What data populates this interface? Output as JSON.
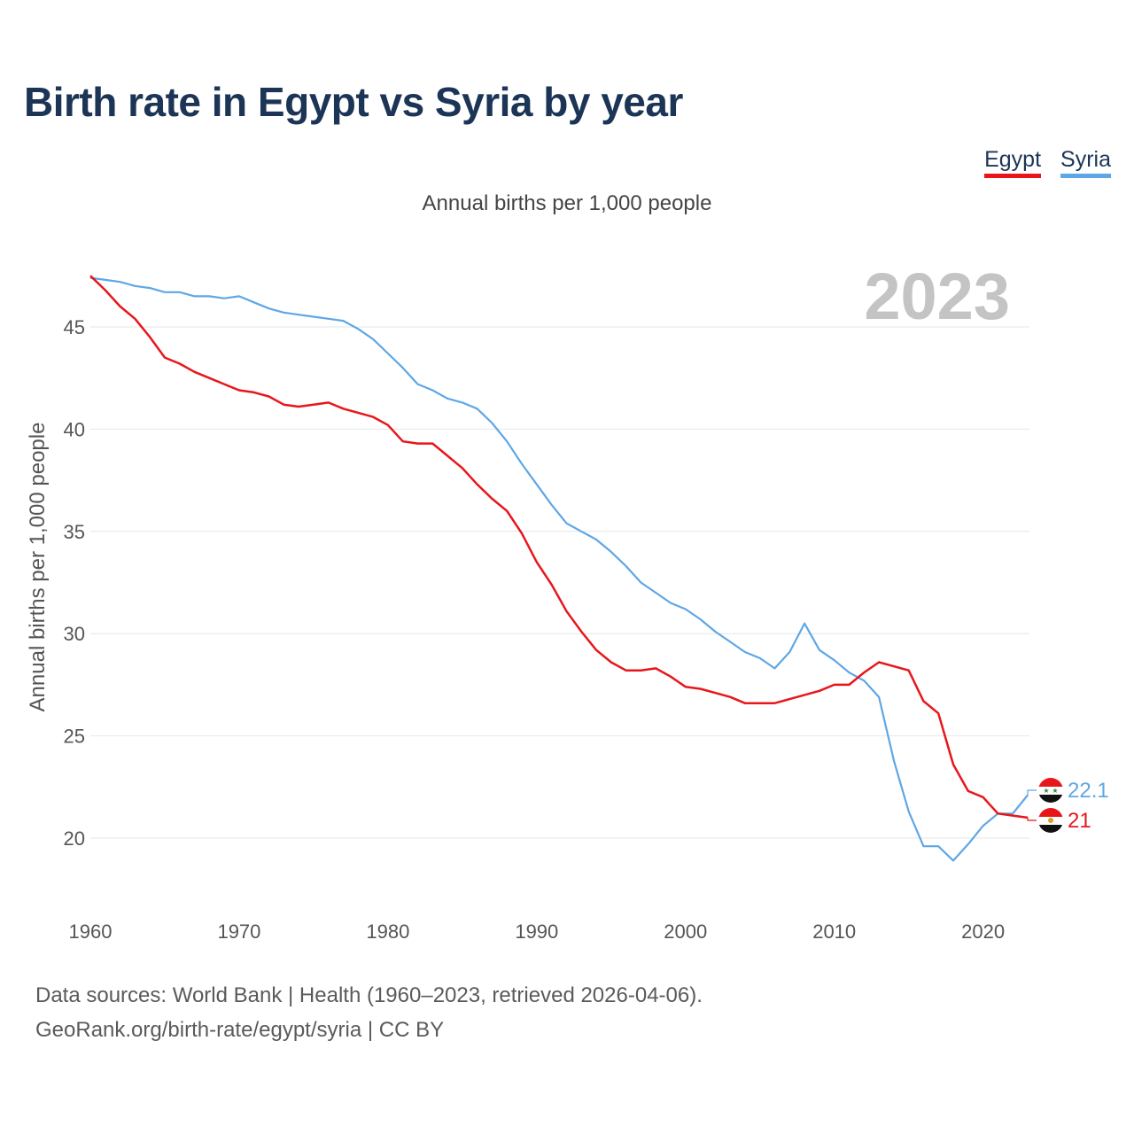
{
  "title": "Birth rate in Egypt vs Syria by year",
  "subtitle": "Annual births per 1,000 people",
  "legend": [
    {
      "label": "Egypt",
      "color": "#e8161b"
    },
    {
      "label": "Syria",
      "color": "#5ea7e6"
    }
  ],
  "footer": {
    "line1": "Data sources: World Bank | Health (1960–2023, retrieved 2026-04-06).",
    "line2": "GeoRank.org/birth-rate/egypt/syria | CC BY"
  },
  "chart_data": {
    "type": "line",
    "title": "Birth rate in Egypt vs Syria by year",
    "ylabel": "Annual births per 1,000 people",
    "xlabel": "",
    "year_watermark": "2023",
    "xlim": [
      1960,
      2023
    ],
    "ylim": [
      17,
      48
    ],
    "x_ticks": [
      1960,
      1970,
      1980,
      1990,
      2000,
      2010,
      2020
    ],
    "y_ticks": [
      20,
      25,
      30,
      35,
      40,
      45
    ],
    "grid": true,
    "series": [
      {
        "name": "Egypt",
        "color": "#e8161b",
        "end_label": "21",
        "flag": "egypt-flag",
        "x": [
          1960,
          1961,
          1962,
          1963,
          1964,
          1965,
          1966,
          1967,
          1968,
          1969,
          1970,
          1971,
          1972,
          1973,
          1974,
          1975,
          1976,
          1977,
          1978,
          1979,
          1980,
          1981,
          1982,
          1983,
          1984,
          1985,
          1986,
          1987,
          1988,
          1989,
          1990,
          1991,
          1992,
          1993,
          1994,
          1995,
          1996,
          1997,
          1998,
          1999,
          2000,
          2001,
          2002,
          2003,
          2004,
          2005,
          2006,
          2007,
          2008,
          2009,
          2010,
          2011,
          2012,
          2013,
          2014,
          2015,
          2016,
          2017,
          2018,
          2019,
          2020,
          2021,
          2022,
          2023
        ],
        "values": [
          47.5,
          46.8,
          46.0,
          45.4,
          44.5,
          43.5,
          43.2,
          42.8,
          42.5,
          42.2,
          41.9,
          41.8,
          41.6,
          41.2,
          41.1,
          41.2,
          41.3,
          41.0,
          40.8,
          40.6,
          40.2,
          39.4,
          39.3,
          39.3,
          38.7,
          38.1,
          37.3,
          36.6,
          36.0,
          34.9,
          33.5,
          32.4,
          31.1,
          30.1,
          29.2,
          28.6,
          28.2,
          28.2,
          28.3,
          27.9,
          27.4,
          27.3,
          27.1,
          26.9,
          26.6,
          26.6,
          26.6,
          26.8,
          27.0,
          27.2,
          27.5,
          27.5,
          28.1,
          28.6,
          28.4,
          28.2,
          26.7,
          26.1,
          23.6,
          22.3,
          22.0,
          21.2,
          21.1,
          21.0
        ]
      },
      {
        "name": "Syria",
        "color": "#5ea7e6",
        "end_label": "22.1",
        "flag": "syria-flag",
        "x": [
          1960,
          1961,
          1962,
          1963,
          1964,
          1965,
          1966,
          1967,
          1968,
          1969,
          1970,
          1971,
          1972,
          1973,
          1974,
          1975,
          1976,
          1977,
          1978,
          1979,
          1980,
          1981,
          1982,
          1983,
          1984,
          1985,
          1986,
          1987,
          1988,
          1989,
          1990,
          1991,
          1992,
          1993,
          1994,
          1995,
          1996,
          1997,
          1998,
          1999,
          2000,
          2001,
          2002,
          2003,
          2004,
          2005,
          2006,
          2007,
          2008,
          2009,
          2010,
          2011,
          2012,
          2013,
          2014,
          2015,
          2016,
          2017,
          2018,
          2019,
          2020,
          2021,
          2022,
          2023
        ],
        "values": [
          47.4,
          47.3,
          47.2,
          47.0,
          46.9,
          46.7,
          46.7,
          46.5,
          46.5,
          46.4,
          46.5,
          46.2,
          45.9,
          45.7,
          45.6,
          45.5,
          45.4,
          45.3,
          44.9,
          44.4,
          43.7,
          43.0,
          42.2,
          41.9,
          41.5,
          41.3,
          41.0,
          40.3,
          39.4,
          38.3,
          37.3,
          36.3,
          35.4,
          35.0,
          34.6,
          34.0,
          33.3,
          32.5,
          32.0,
          31.5,
          31.2,
          30.7,
          30.1,
          29.6,
          29.1,
          28.8,
          28.3,
          29.1,
          30.5,
          29.2,
          28.7,
          28.1,
          27.7,
          26.9,
          23.8,
          21.3,
          19.6,
          19.6,
          18.9,
          19.7,
          20.6,
          21.2,
          21.2,
          22.1
        ]
      }
    ]
  }
}
